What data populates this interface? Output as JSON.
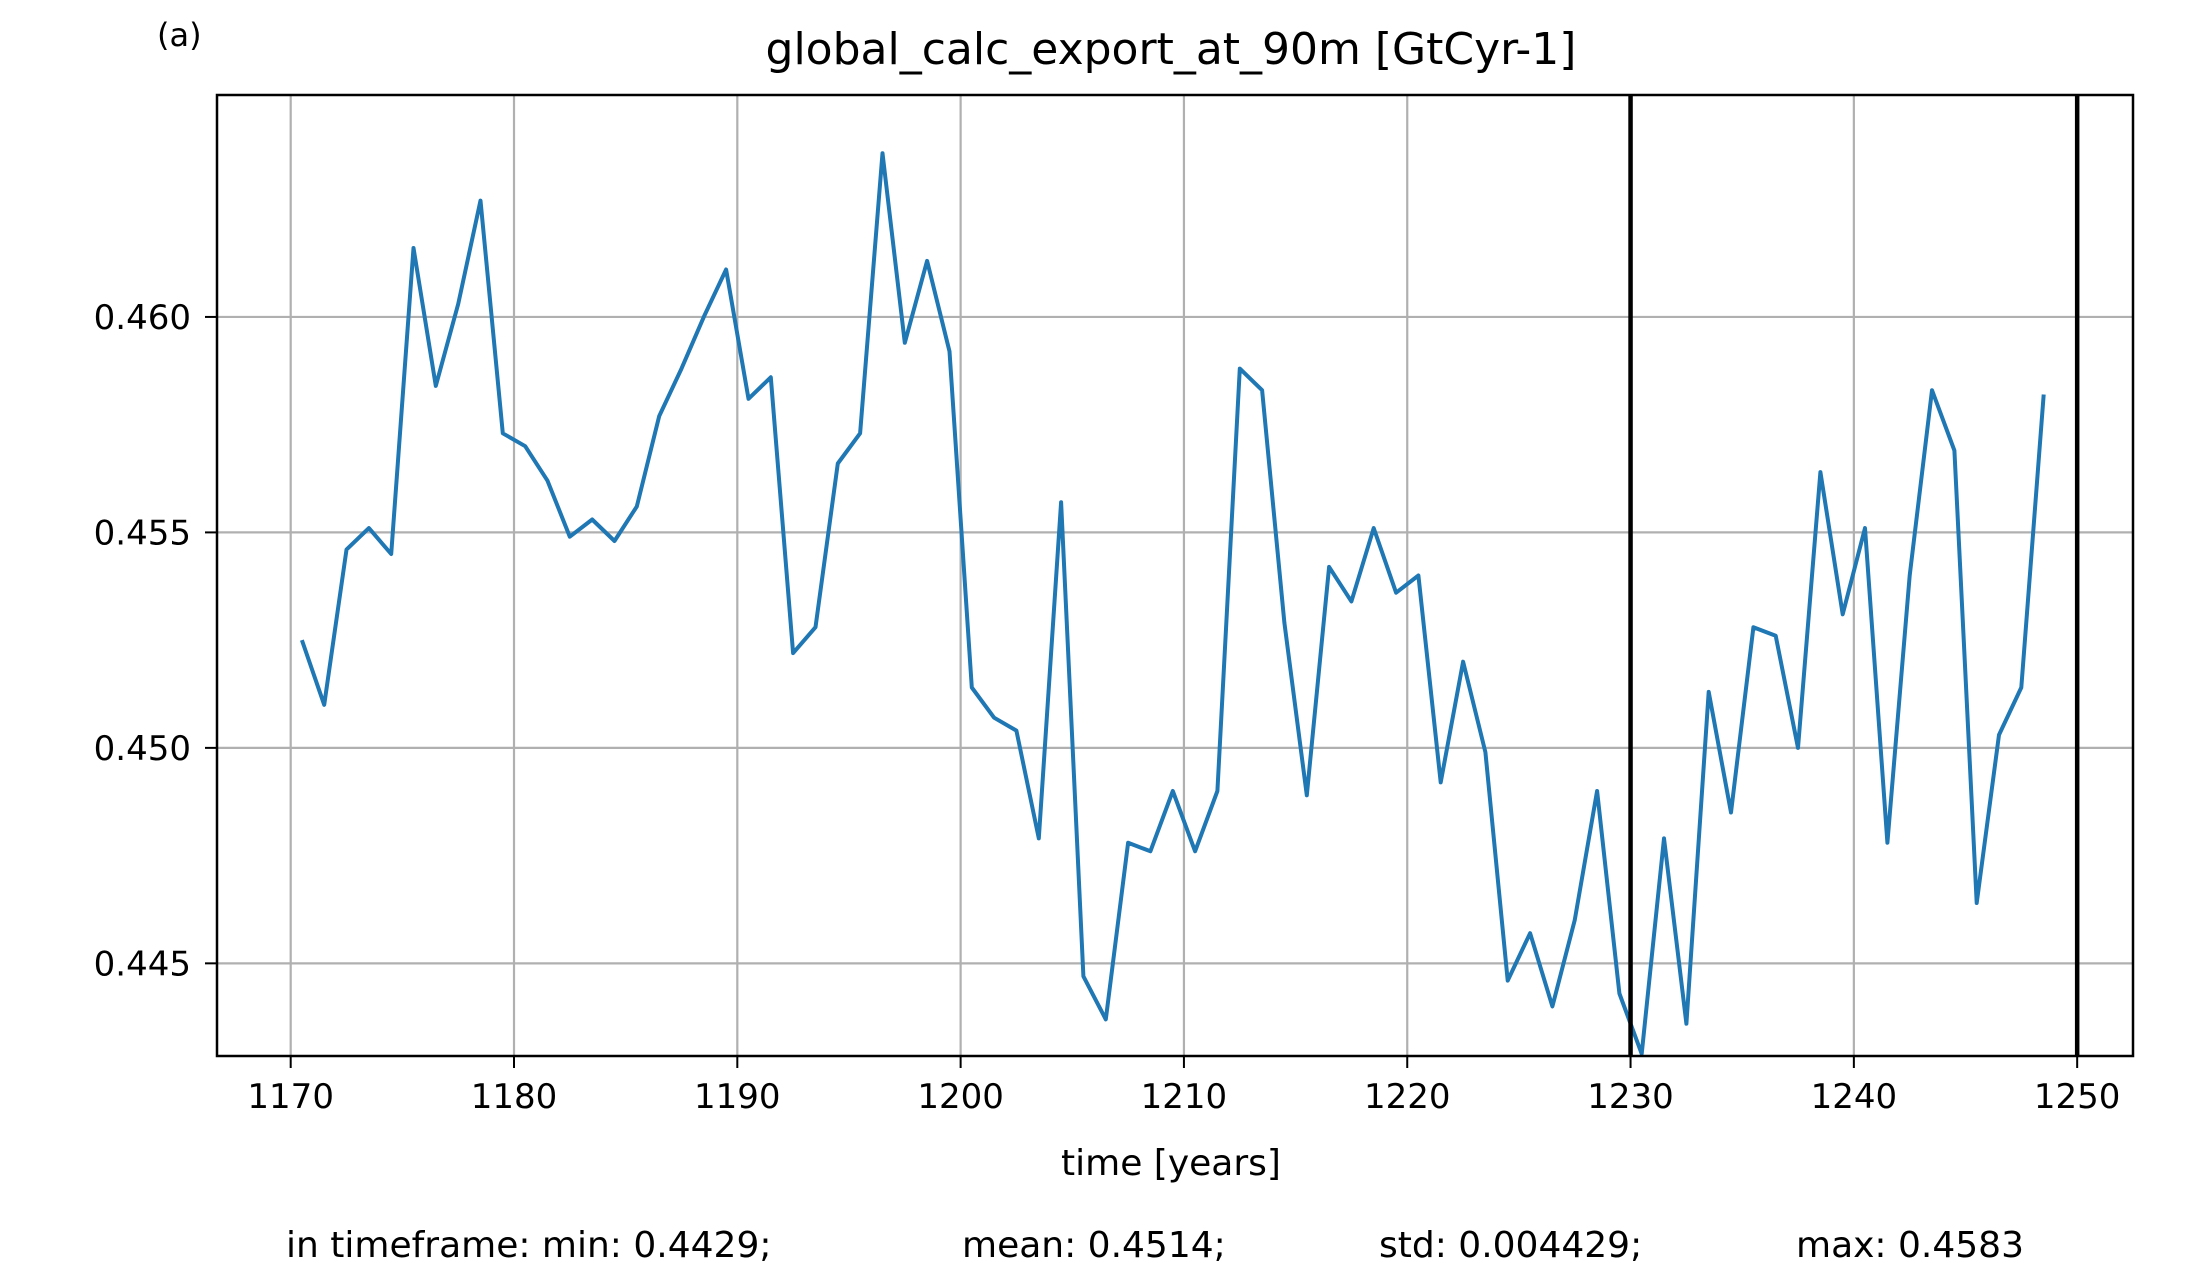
{
  "panel_label": "(a)",
  "stats": {
    "min": "in timeframe: min: 0.4429;",
    "mean": "mean: 0.4514;",
    "std": "std: 0.004429;",
    "max": "max: 0.4583"
  },
  "colors": {
    "series": "#1f77b4",
    "grid": "#b0b0b0",
    "vline": "#000000",
    "frame": "#000000"
  },
  "chart_data": {
    "type": "line",
    "title": "global_calc_export_at_90m [GtCyr-1]",
    "xlabel": "time [years]",
    "ylabel": "",
    "xlim": [
      1166.7,
      1252.5
    ],
    "ylim": [
      0.44285,
      0.46515
    ],
    "xticks": [
      1170,
      1180,
      1190,
      1200,
      1210,
      1220,
      1230,
      1240,
      1250
    ],
    "yticks": [
      0.445,
      0.45,
      0.455,
      0.46
    ],
    "ytick_labels": [
      "0.445",
      "0.450",
      "0.455",
      "0.460"
    ],
    "grid": true,
    "vlines": [
      1230,
      1250
    ],
    "series": [
      {
        "x": [
          1170.5,
          1171.5,
          1172.5,
          1173.5,
          1174.5,
          1175.5,
          1176.5,
          1177.5,
          1178.5,
          1179.5,
          1180.5,
          1181.5,
          1182.5,
          1183.5,
          1184.5,
          1185.5,
          1186.5,
          1187.5,
          1188.5,
          1189.5,
          1190.5,
          1191.5,
          1192.5,
          1193.5,
          1194.5,
          1195.5,
          1196.5,
          1197.5,
          1198.5,
          1199.5,
          1200.5,
          1201.5,
          1202.5,
          1203.5,
          1204.5,
          1205.5,
          1206.5,
          1207.5,
          1208.5,
          1209.5,
          1210.5,
          1211.5,
          1212.5,
          1213.5,
          1214.5,
          1215.5,
          1216.5,
          1217.5,
          1218.5,
          1219.5,
          1220.5,
          1221.5,
          1222.5,
          1223.5,
          1224.5,
          1225.5,
          1226.5,
          1227.5,
          1228.5,
          1229.5,
          1230.5,
          1231.5,
          1232.5,
          1233.5,
          1234.5,
          1235.5,
          1236.5,
          1237.5,
          1238.5,
          1239.5,
          1240.5,
          1241.5,
          1242.5,
          1243.5,
          1244.5,
          1245.5,
          1246.5,
          1247.5,
          1248.5
        ],
        "values": [
          0.4525,
          0.451,
          0.4546,
          0.4551,
          0.4545,
          0.4616,
          0.4584,
          0.4603,
          0.4627,
          0.4573,
          0.457,
          0.4562,
          0.4549,
          0.4553,
          0.4548,
          0.4556,
          0.4577,
          0.4588,
          0.46,
          0.4611,
          0.4581,
          0.4586,
          0.4522,
          0.4528,
          0.4566,
          0.4573,
          0.4638,
          0.4594,
          0.4613,
          0.4592,
          0.4514,
          0.4507,
          0.4504,
          0.4479,
          0.4557,
          0.4447,
          0.4437,
          0.4478,
          0.4476,
          0.449,
          0.4476,
          0.449,
          0.4588,
          0.4583,
          0.4529,
          0.4489,
          0.4542,
          0.4534,
          0.4551,
          0.4536,
          0.454,
          0.4492,
          0.452,
          0.4499,
          0.4446,
          0.4457,
          0.444,
          0.446,
          0.449,
          0.4443,
          0.4429,
          0.4479,
          0.4436,
          0.4513,
          0.4485,
          0.4528,
          0.4526,
          0.45,
          0.4564,
          0.4531,
          0.4551,
          0.4478,
          0.454,
          0.4583,
          0.4569,
          0.4464,
          0.4503,
          0.4514,
          0.4582
        ]
      }
    ]
  }
}
